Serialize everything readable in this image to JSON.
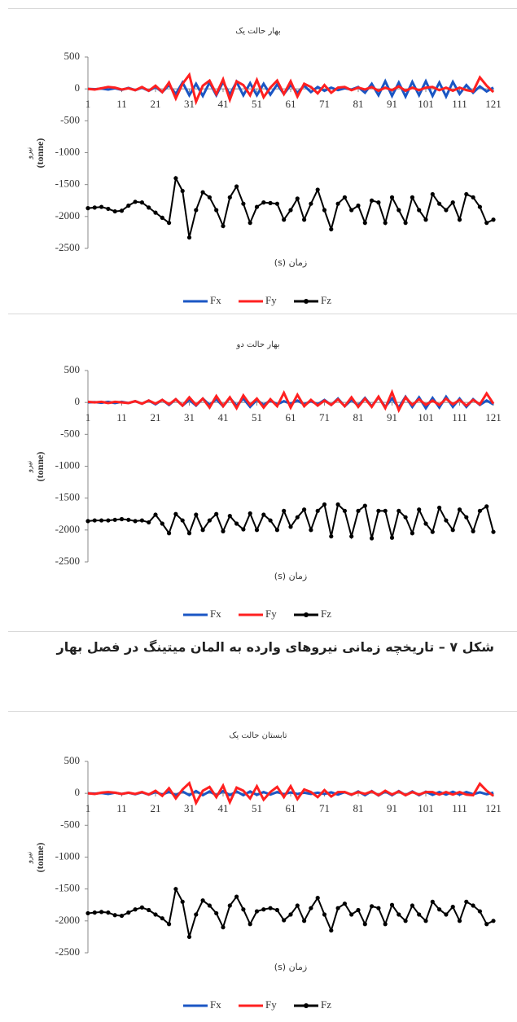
{
  "chart_data": [
    {
      "type": "line",
      "title": "بهار حالت یک",
      "xlabel": "زمان (s)",
      "ylabel": "نیرو",
      "ylabel_unit": "(tonne)",
      "x": [
        1,
        3,
        5,
        7,
        9,
        11,
        13,
        15,
        17,
        19,
        21,
        23,
        25,
        27,
        29,
        31,
        33,
        35,
        37,
        39,
        41,
        43,
        45,
        47,
        49,
        51,
        53,
        55,
        57,
        59,
        61,
        63,
        65,
        67,
        69,
        71,
        73,
        75,
        77,
        79,
        81,
        83,
        85,
        87,
        89,
        91,
        93,
        95,
        97,
        99,
        101,
        103,
        105,
        107,
        109,
        111,
        113,
        115,
        117,
        119,
        121
      ],
      "xlim": [
        1,
        121
      ],
      "xticks": [
        1,
        11,
        21,
        31,
        41,
        51,
        61,
        71,
        81,
        91,
        101,
        111,
        121
      ],
      "ylim": [
        -2500,
        500
      ],
      "yticks": [
        -2500,
        -2000,
        -1500,
        -1000,
        -500,
        0,
        500
      ],
      "legend": "bottom",
      "series": [
        {
          "name": "Fx",
          "color": "#1a56c4",
          "values": [
            0,
            -5,
            5,
            -10,
            10,
            -15,
            15,
            -20,
            20,
            -30,
            30,
            -50,
            60,
            -80,
            100,
            -100,
            80,
            -110,
            100,
            -100,
            110,
            -90,
            110,
            -100,
            90,
            -100,
            80,
            -90,
            70,
            -80,
            60,
            -60,
            50,
            -50,
            30,
            -30,
            20,
            -20,
            10,
            -10,
            30,
            -60,
            80,
            -100,
            120,
            -110,
            100,
            -120,
            110,
            -100,
            120,
            -110,
            100,
            -120,
            110,
            -80,
            60,
            -60,
            40,
            -40,
            20
          ]
        },
        {
          "name": "Fy",
          "color": "#ff2020",
          "values": [
            0,
            -10,
            10,
            30,
            20,
            -10,
            10,
            -20,
            30,
            -30,
            50,
            -50,
            100,
            -150,
            80,
            220,
            -200,
            50,
            130,
            -80,
            150,
            -170,
            120,
            60,
            -100,
            140,
            -130,
            20,
            130,
            -80,
            120,
            -120,
            80,
            30,
            -70,
            60,
            -60,
            20,
            30,
            -20,
            20,
            -10,
            30,
            -30,
            20,
            -20,
            40,
            -30,
            20,
            -20,
            20,
            30,
            -20,
            20,
            -30,
            20,
            -20,
            -40,
            180,
            50,
            -50
          ]
        },
        {
          "name": "Fz",
          "color": "#000000",
          "marker": true,
          "values": [
            -1870,
            -1860,
            -1850,
            -1880,
            -1920,
            -1910,
            -1830,
            -1770,
            -1780,
            -1860,
            -1940,
            -2020,
            -2100,
            -1400,
            -1600,
            -2330,
            -1900,
            -1620,
            -1700,
            -1900,
            -2150,
            -1700,
            -1530,
            -1800,
            -2100,
            -1850,
            -1780,
            -1790,
            -1800,
            -2050,
            -1900,
            -1720,
            -2050,
            -1800,
            -1580,
            -1900,
            -2200,
            -1800,
            -1700,
            -1900,
            -1830,
            -2100,
            -1750,
            -1780,
            -2100,
            -1700,
            -1900,
            -2100,
            -1700,
            -1900,
            -2050,
            -1650,
            -1800,
            -1900,
            -1780,
            -2050,
            -1650,
            -1700,
            -1850,
            -2100,
            -2050
          ]
        }
      ]
    },
    {
      "type": "line",
      "title": "بهار حالت دو",
      "xlabel": "زمان (s)",
      "ylabel": "نیرو",
      "ylabel_unit": "(tonne)",
      "x": [
        1,
        3,
        5,
        7,
        9,
        11,
        13,
        15,
        17,
        19,
        21,
        23,
        25,
        27,
        29,
        31,
        33,
        35,
        37,
        39,
        41,
        43,
        45,
        47,
        49,
        51,
        53,
        55,
        57,
        59,
        61,
        63,
        65,
        67,
        69,
        71,
        73,
        75,
        77,
        79,
        81,
        83,
        85,
        87,
        89,
        91,
        93,
        95,
        97,
        99,
        101,
        103,
        105,
        107,
        109,
        111,
        113,
        115,
        117,
        119,
        121
      ],
      "xlim": [
        1,
        121
      ],
      "xticks": [
        1,
        11,
        21,
        31,
        41,
        51,
        61,
        71,
        81,
        91,
        101,
        111,
        121
      ],
      "ylim": [
        -2500,
        500
      ],
      "yticks": [
        -2500,
        -2000,
        -1500,
        -1000,
        -500,
        0,
        500
      ],
      "legend": "bottom",
      "series": [
        {
          "name": "Fx",
          "color": "#1a56c4",
          "values": [
            0,
            5,
            -5,
            10,
            -10,
            10,
            -10,
            20,
            -20,
            30,
            -30,
            40,
            -40,
            50,
            -50,
            40,
            -50,
            60,
            -40,
            50,
            -60,
            70,
            -50,
            60,
            -70,
            40,
            -40,
            30,
            -30,
            20,
            -20,
            30,
            -30,
            20,
            -30,
            40,
            -40,
            60,
            -60,
            40,
            -50,
            70,
            -60,
            80,
            -70,
            60,
            -80,
            90,
            -70,
            80,
            -90,
            70,
            -80,
            90,
            -70,
            60,
            -70,
            50,
            -40,
            30,
            -30
          ]
        },
        {
          "name": "Fy",
          "color": "#ff2020",
          "values": [
            10,
            0,
            10,
            -10,
            10,
            0,
            -10,
            20,
            -20,
            30,
            -20,
            40,
            -30,
            50,
            -50,
            80,
            -40,
            60,
            -80,
            100,
            -60,
            80,
            -90,
            110,
            -40,
            60,
            -80,
            50,
            -60,
            150,
            -80,
            120,
            -60,
            40,
            -50,
            30,
            -40,
            50,
            -60,
            80,
            -70,
            60,
            -70,
            90,
            -90,
            160,
            -120,
            80,
            -40,
            50,
            -40,
            30,
            -40,
            60,
            -30,
            40,
            -50,
            40,
            -30,
            140,
            -20
          ]
        },
        {
          "name": "Fz",
          "color": "#000000",
          "marker": true,
          "values": [
            -1860,
            -1850,
            -1850,
            -1850,
            -1840,
            -1830,
            -1840,
            -1860,
            -1850,
            -1880,
            -1760,
            -1900,
            -2050,
            -1750,
            -1850,
            -2050,
            -1760,
            -2000,
            -1850,
            -1750,
            -2020,
            -1780,
            -1900,
            -1990,
            -1740,
            -2000,
            -1760,
            -1850,
            -2000,
            -1700,
            -1950,
            -1800,
            -1680,
            -2000,
            -1700,
            -1600,
            -2100,
            -1600,
            -1700,
            -2100,
            -1700,
            -1620,
            -2130,
            -1700,
            -1700,
            -2120,
            -1700,
            -1800,
            -2050,
            -1680,
            -1900,
            -2030,
            -1650,
            -1850,
            -2000,
            -1680,
            -1800,
            -2020,
            -1700,
            -1630,
            -2030
          ]
        }
      ]
    },
    {
      "type": "line",
      "title": "تابستان حالت یک",
      "xlabel": "زمان (s)",
      "ylabel": "نیرو",
      "ylabel_unit": "(tonne)",
      "x": [
        1,
        3,
        5,
        7,
        9,
        11,
        13,
        15,
        17,
        19,
        21,
        23,
        25,
        27,
        29,
        31,
        33,
        35,
        37,
        39,
        41,
        43,
        45,
        47,
        49,
        51,
        53,
        55,
        57,
        59,
        61,
        63,
        65,
        67,
        69,
        71,
        73,
        75,
        77,
        79,
        81,
        83,
        85,
        87,
        89,
        91,
        93,
        95,
        97,
        99,
        101,
        103,
        105,
        107,
        109,
        111,
        113,
        115,
        117,
        119,
        121
      ],
      "xlim": [
        1,
        121
      ],
      "xticks": [
        1,
        11,
        21,
        31,
        41,
        51,
        61,
        71,
        81,
        91,
        101,
        111,
        121
      ],
      "ylim": [
        -2500,
        500
      ],
      "yticks": [
        -2500,
        -2000,
        -1500,
        -1000,
        -500,
        0,
        500
      ],
      "legend": "bottom",
      "series": [
        {
          "name": "Fx",
          "color": "#1a56c4",
          "values": [
            0,
            -5,
            5,
            -10,
            10,
            -10,
            10,
            -15,
            15,
            -20,
            20,
            -20,
            25,
            -30,
            30,
            -30,
            35,
            -30,
            30,
            -30,
            35,
            -30,
            30,
            -30,
            30,
            -25,
            20,
            -20,
            20,
            -15,
            15,
            -10,
            10,
            -10,
            10,
            -10,
            15,
            -20,
            20,
            -25,
            30,
            -30,
            35,
            -35,
            30,
            -30,
            35,
            -30,
            30,
            -30,
            25,
            -25,
            20,
            -20,
            25,
            -20,
            20,
            -15,
            15,
            -15,
            10
          ]
        },
        {
          "name": "Fy",
          "color": "#ff2020",
          "values": [
            0,
            -10,
            10,
            20,
            10,
            -10,
            10,
            -10,
            20,
            -20,
            40,
            -40,
            80,
            -80,
            60,
            160,
            -150,
            40,
            100,
            -60,
            120,
            -140,
            90,
            40,
            -80,
            110,
            -100,
            20,
            100,
            -60,
            110,
            -90,
            60,
            20,
            -60,
            50,
            -50,
            20,
            20,
            -20,
            20,
            -10,
            30,
            -30,
            40,
            -20,
            30,
            -30,
            20,
            -20,
            20,
            20,
            -20,
            20,
            -20,
            20,
            -20,
            -30,
            150,
            40,
            -40
          ]
        },
        {
          "name": "Fz",
          "color": "#000000",
          "marker": true,
          "values": [
            -1880,
            -1870,
            -1860,
            -1870,
            -1910,
            -1920,
            -1870,
            -1820,
            -1790,
            -1830,
            -1900,
            -1960,
            -2050,
            -1500,
            -1700,
            -2250,
            -1900,
            -1680,
            -1760,
            -1880,
            -2100,
            -1760,
            -1620,
            -1820,
            -2050,
            -1850,
            -1820,
            -1800,
            -1830,
            -1990,
            -1900,
            -1760,
            -2000,
            -1800,
            -1640,
            -1900,
            -2150,
            -1800,
            -1730,
            -1900,
            -1830,
            -2050,
            -1770,
            -1800,
            -2050,
            -1750,
            -1900,
            -2000,
            -1760,
            -1900,
            -2000,
            -1700,
            -1820,
            -1900,
            -1780,
            -2000,
            -1700,
            -1760,
            -1850,
            -2050,
            -2000
          ]
        }
      ]
    }
  ],
  "caption": "شکل ۷ – تاریخچه زمانی نیروهای وارده به المان میتینگ در فصل بهار"
}
